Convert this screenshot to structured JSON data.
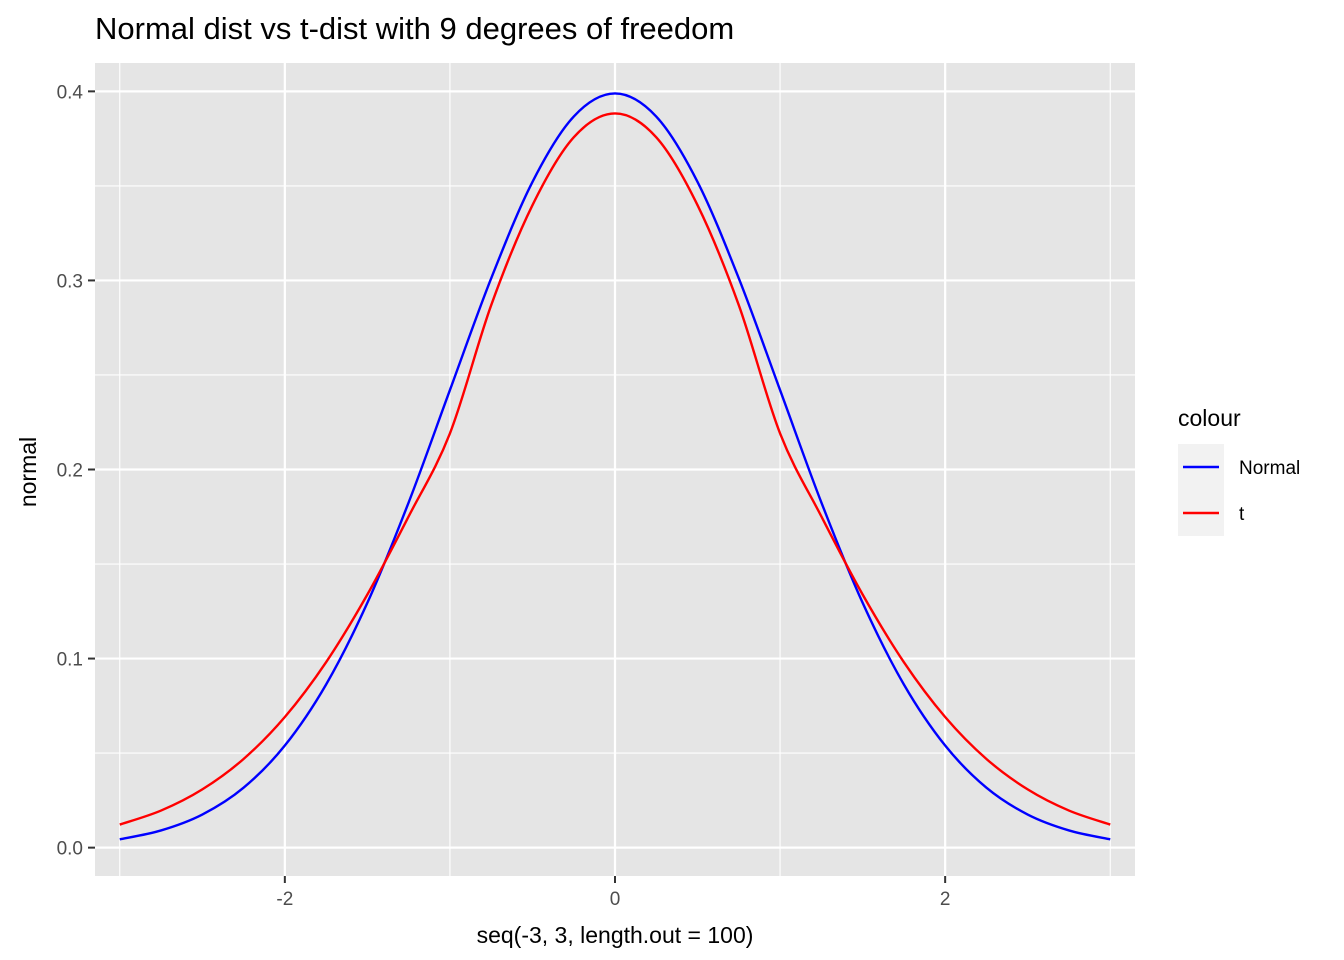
{
  "chart_data": {
    "type": "line",
    "title": "Normal dist vs t-dist with 9 degrees of freedom",
    "xlabel": "seq(-3, 3, length.out = 100)",
    "ylabel": "normal",
    "xlim": [
      -3.15,
      3.15
    ],
    "ylim": [
      -0.015,
      0.415
    ],
    "x_ticks": [
      -2,
      0,
      2
    ],
    "x_tick_labels": [
      "-2",
      "0",
      "2"
    ],
    "y_ticks": [
      0.0,
      0.1,
      0.2,
      0.3,
      0.4
    ],
    "y_tick_labels": [
      "0.0",
      "0.1",
      "0.2",
      "0.3",
      "0.4"
    ],
    "grid": true,
    "legend": {
      "title": "colour",
      "position": "right"
    },
    "x": [
      -3.0,
      -2.75,
      -2.5,
      -2.25,
      -2.0,
      -1.75,
      -1.5,
      -1.25,
      -1.0,
      -0.75,
      -0.5,
      -0.25,
      0.0,
      0.25,
      0.5,
      0.75,
      1.0,
      1.25,
      1.5,
      1.75,
      2.0,
      2.25,
      2.5,
      2.75,
      3.0
    ],
    "series": [
      {
        "name": "Normal",
        "color": "#0000ff",
        "values": [
          0.0044,
          0.0091,
          0.0175,
          0.0317,
          0.054,
          0.0863,
          0.1295,
          0.1826,
          0.242,
          0.3011,
          0.3521,
          0.3867,
          0.3989,
          0.3867,
          0.3521,
          0.3011,
          0.242,
          0.1826,
          0.1295,
          0.0863,
          0.054,
          0.0317,
          0.0175,
          0.0091,
          0.0044
        ]
      },
      {
        "name": "t",
        "color": "#ff0000",
        "values": [
          0.0122,
          0.0196,
          0.0308,
          0.0469,
          0.0691,
          0.0981,
          0.1339,
          0.1752,
          0.2191,
          0.2869,
          0.3398,
          0.3757,
          0.3883,
          0.3757,
          0.3398,
          0.2869,
          0.2191,
          0.1752,
          0.1339,
          0.0981,
          0.0691,
          0.0469,
          0.0308,
          0.0196,
          0.0122
        ]
      }
    ]
  }
}
